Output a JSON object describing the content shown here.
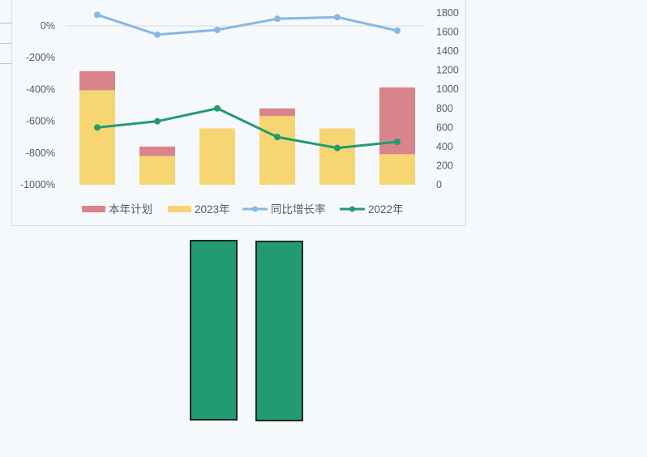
{
  "chart_data": {
    "type": "bar",
    "categories": [
      "",
      "",
      "",
      "",
      "",
      ""
    ],
    "left_axis": {
      "ticks": [
        "0%",
        "-200%",
        "-400%",
        "-600%",
        "-800%",
        "-1000%"
      ],
      "tick_values": [
        0,
        -200,
        -400,
        -600,
        -800,
        -1000
      ],
      "range": [
        -1000,
        100
      ],
      "unit": "%"
    },
    "right_axis": {
      "ticks": [
        "1800",
        "1600",
        "1400",
        "1200",
        "1000",
        "800",
        "600",
        "400",
        "200",
        "0"
      ],
      "tick_values": [
        1800,
        1600,
        1400,
        1200,
        1000,
        800,
        600,
        400,
        200,
        0
      ],
      "range": [
        0,
        1800
      ]
    },
    "series": [
      {
        "name": "本年计划",
        "kind": "bar-stacked",
        "axis": "right",
        "color": "#d8848a",
        "values": [
          200,
          100,
          0,
          80,
          0,
          700
        ]
      },
      {
        "name": "2023年",
        "kind": "bar-stacked",
        "axis": "right",
        "color": "#f5d672",
        "values": [
          990,
          300,
          590,
          720,
          590,
          320
        ]
      },
      {
        "name": "同比增长率",
        "kind": "line",
        "axis": "left",
        "color": "#85b8e4",
        "values": [
          70,
          -55,
          -25,
          45,
          55,
          -30
        ]
      },
      {
        "name": "2022年",
        "kind": "line",
        "axis": "right",
        "color": "#229b70",
        "values": [
          600,
          665,
          800,
          500,
          385,
          450
        ]
      }
    ],
    "grid": "zero-line only",
    "legend_position": "bottom"
  },
  "shapes": [
    {
      "name": "green-rectangle-left",
      "fill": "#229b70"
    },
    {
      "name": "green-rectangle-right",
      "fill": "#229b70"
    }
  ]
}
